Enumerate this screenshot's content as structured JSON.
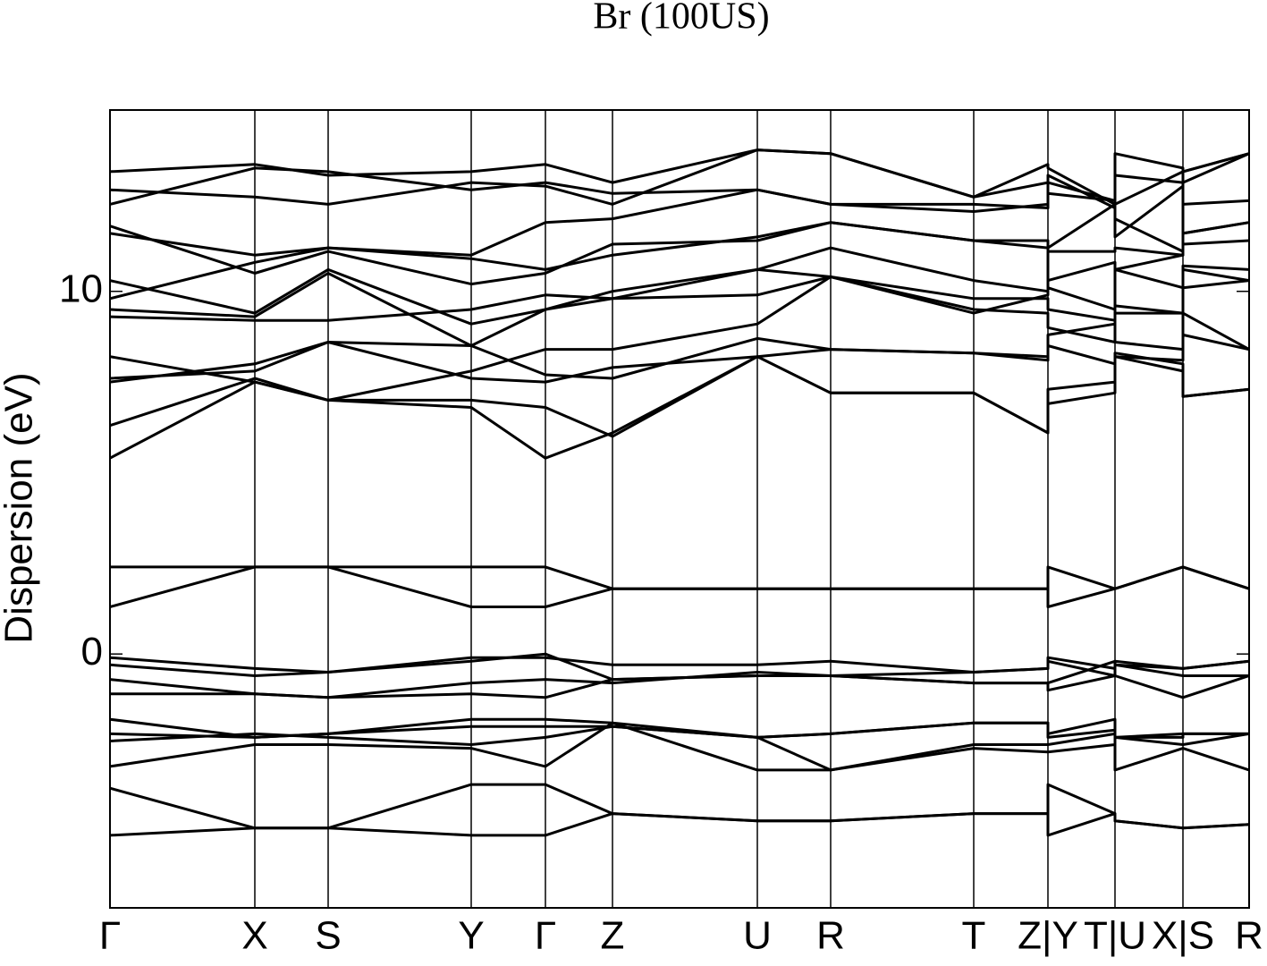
{
  "chart_data": {
    "type": "line",
    "title": "Br (100US)",
    "y_label": "Dispersion (eV)",
    "color": "#000000",
    "grid": true,
    "x": [
      0,
      1.62,
      2.44,
      4.04,
      4.87,
      5.62,
      7.24,
      8.06,
      9.66,
      10.49,
      10.49,
      11.24,
      11.24,
      12.0,
      12.0,
      12.74
    ],
    "xlim": [
      0,
      12.74
    ],
    "xticks": [
      {
        "value": 0,
        "label": "Γ"
      },
      {
        "value": 1.62,
        "label": "X"
      },
      {
        "value": 2.44,
        "label": "S"
      },
      {
        "value": 4.04,
        "label": "Y"
      },
      {
        "value": 4.87,
        "label": "Γ"
      },
      {
        "value": 5.62,
        "label": "Z"
      },
      {
        "value": 7.24,
        "label": "U"
      },
      {
        "value": 8.06,
        "label": "R"
      },
      {
        "value": 9.66,
        "label": "T"
      },
      {
        "value": 10.49,
        "label": "Z|Y"
      },
      {
        "value": 11.24,
        "label": "T|U"
      },
      {
        "value": 12.0,
        "label": "X|S"
      },
      {
        "value": 12.74,
        "label": "R"
      }
    ],
    "ylim": [
      -7,
      15
    ],
    "yticks": [
      0,
      10
    ],
    "series": [
      {
        "values": [
          -3.7,
          -4.8,
          -4.8,
          -3.6,
          -3.6,
          -4.4,
          -4.6,
          -4.6,
          -4.4,
          -4.4,
          -3.6,
          -4.4,
          -4.6,
          -4.8,
          -4.8,
          -4.7
        ]
      },
      {
        "values": [
          -5.0,
          -4.8,
          -4.8,
          -5.0,
          -5.0,
          -4.4,
          -4.6,
          -4.6,
          -4.4,
          -4.4,
          -5.0,
          -4.4,
          -4.6,
          -4.8,
          -4.8,
          -4.7
        ]
      },
      {
        "values": [
          -1.8,
          -2.3,
          -2.2,
          -1.8,
          -1.8,
          -1.9,
          -2.3,
          -2.2,
          -1.9,
          -1.9,
          -2.2,
          -1.8,
          -2.3,
          -2.3,
          -2.2,
          -2.2
        ]
      },
      {
        "values": [
          -2.2,
          -2.3,
          -2.2,
          -2.0,
          -2.0,
          -2.0,
          -2.3,
          -2.2,
          -1.9,
          -1.9,
          -2.3,
          -2.1,
          -2.3,
          -2.2,
          -2.2,
          -2.2
        ]
      },
      {
        "values": [
          -2.4,
          -2.2,
          -2.3,
          -2.5,
          -2.3,
          -2.0,
          -2.3,
          -3.2,
          -2.5,
          -2.5,
          -2.5,
          -2.2,
          -3.2,
          -2.6,
          -2.6,
          -3.2
        ]
      },
      {
        "values": [
          -3.1,
          -2.5,
          -2.5,
          -2.6,
          -3.1,
          -1.9,
          -3.2,
          -3.2,
          -2.6,
          -2.7,
          -2.7,
          -2.5,
          -2.3,
          -2.5,
          -2.5,
          -2.2
        ]
      },
      {
        "values": [
          -0.1,
          -0.4,
          -0.5,
          -0.1,
          -0.1,
          -0.3,
          -0.3,
          -0.2,
          -0.5,
          -0.4,
          -0.1,
          -0.4,
          -0.3,
          -0.4,
          -0.4,
          -0.2
        ]
      },
      {
        "values": [
          -0.3,
          -0.6,
          -0.5,
          -0.2,
          0.0,
          -0.7,
          -0.6,
          -0.6,
          -0.5,
          -0.4,
          -0.2,
          -0.6,
          -0.3,
          -0.6,
          -0.6,
          -0.6
        ]
      },
      {
        "values": [
          -0.7,
          -1.1,
          -1.2,
          -0.8,
          -0.7,
          -0.8,
          -0.5,
          -0.6,
          -0.8,
          -0.8,
          -0.8,
          -0.2,
          -0.6,
          -1.2,
          -1.2,
          -0.6
        ]
      },
      {
        "values": [
          -1.1,
          -1.1,
          -1.2,
          -1.1,
          -1.2,
          -0.7,
          -0.6,
          -0.6,
          -0.8,
          -0.8,
          -1.0,
          -0.6,
          -0.2,
          -0.4,
          -0.4,
          -0.2
        ]
      },
      {
        "values": [
          2.4,
          2.4,
          2.4,
          2.4,
          2.4,
          1.8,
          1.8,
          1.8,
          1.8,
          1.8,
          2.4,
          1.8,
          1.8,
          2.4,
          2.4,
          1.8
        ]
      },
      {
        "values": [
          1.3,
          2.4,
          2.4,
          1.3,
          1.3,
          1.8,
          1.8,
          1.8,
          1.8,
          1.8,
          1.3,
          1.8,
          1.8,
          2.4,
          2.4,
          1.8
        ]
      },
      {
        "values": [
          5.4,
          7.5,
          7.0,
          6.8,
          5.4,
          6.1,
          8.2,
          7.2,
          7.2,
          6.1,
          6.9,
          7.2,
          8.2,
          7.8,
          7.1,
          7.3
        ]
      },
      {
        "values": [
          6.3,
          7.6,
          7.0,
          7.0,
          6.8,
          6.0,
          8.2,
          7.2,
          7.2,
          6.1,
          7.3,
          7.5,
          8.3,
          8.0,
          7.1,
          7.3
        ]
      },
      {
        "values": [
          7.5,
          8.0,
          8.6,
          7.6,
          7.5,
          7.9,
          8.2,
          8.4,
          8.3,
          8.1,
          8.5,
          8.0,
          8.2,
          8.1,
          8.8,
          8.4
        ]
      },
      {
        "values": [
          7.6,
          7.8,
          8.6,
          8.5,
          7.7,
          7.6,
          8.7,
          8.4,
          8.3,
          8.2,
          8.8,
          9.1,
          8.6,
          8.4,
          9.4,
          8.4
        ]
      },
      {
        "values": [
          8.2,
          7.5,
          7.0,
          7.8,
          8.4,
          8.4,
          9.1,
          10.4,
          9.5,
          9.4,
          9.0,
          8.6,
          9.4,
          9.4,
          10.6,
          10.3
        ]
      },
      {
        "values": [
          9.5,
          9.3,
          10.5,
          8.5,
          9.5,
          9.8,
          10.6,
          10.4,
          9.4,
          9.9,
          10.1,
          9.5,
          10.6,
          10.1,
          10.7,
          10.6
        ]
      },
      {
        "values": [
          10.3,
          9.4,
          10.6,
          9.1,
          9.5,
          10.0,
          10.6,
          11.2,
          10.3,
          10.0,
          11.1,
          11.1,
          11.2,
          11.0,
          11.3,
          11.4
        ]
      },
      {
        "values": [
          9.8,
          10.8,
          11.2,
          10.9,
          10.6,
          11.0,
          11.5,
          11.9,
          11.4,
          11.2,
          11.2,
          12.4,
          11.5,
          12.9,
          11.6,
          11.9
        ]
      },
      {
        "values": [
          11.6,
          11.0,
          11.2,
          11.0,
          11.9,
          12.0,
          12.8,
          12.4,
          12.2,
          12.4,
          12.7,
          12.5,
          12.4,
          13.3,
          12.4,
          12.5
        ]
      },
      {
        "values": [
          12.4,
          13.4,
          13.3,
          12.8,
          13.0,
          12.7,
          12.8,
          12.4,
          12.4,
          12.3,
          13.2,
          12.3,
          13.8,
          13.4,
          13.3,
          13.8
        ]
      },
      {
        "values": [
          13.3,
          13.5,
          13.2,
          13.3,
          13.5,
          13.0,
          13.9,
          13.8,
          12.6,
          13.5,
          13.4,
          12.4,
          13.2,
          13.0,
          13.3,
          13.8
        ]
      },
      {
        "values": [
          12.8,
          12.6,
          12.4,
          13.0,
          12.9,
          12.4,
          13.9,
          13.8,
          12.6,
          13.0,
          13.0,
          12.5,
          12.0,
          11.1,
          13.0,
          13.8
        ]
      },
      {
        "values": [
          11.8,
          10.5,
          11.1,
          10.2,
          10.5,
          11.3,
          11.4,
          11.9,
          11.4,
          11.4,
          10.3,
          10.8,
          10.6,
          11.0,
          11.6,
          11.9
        ]
      },
      {
        "values": [
          9.3,
          9.2,
          9.2,
          9.5,
          9.9,
          9.8,
          9.9,
          10.4,
          9.8,
          9.8,
          9.5,
          9.2,
          9.6,
          9.4,
          10.1,
          10.3
        ]
      }
    ]
  }
}
